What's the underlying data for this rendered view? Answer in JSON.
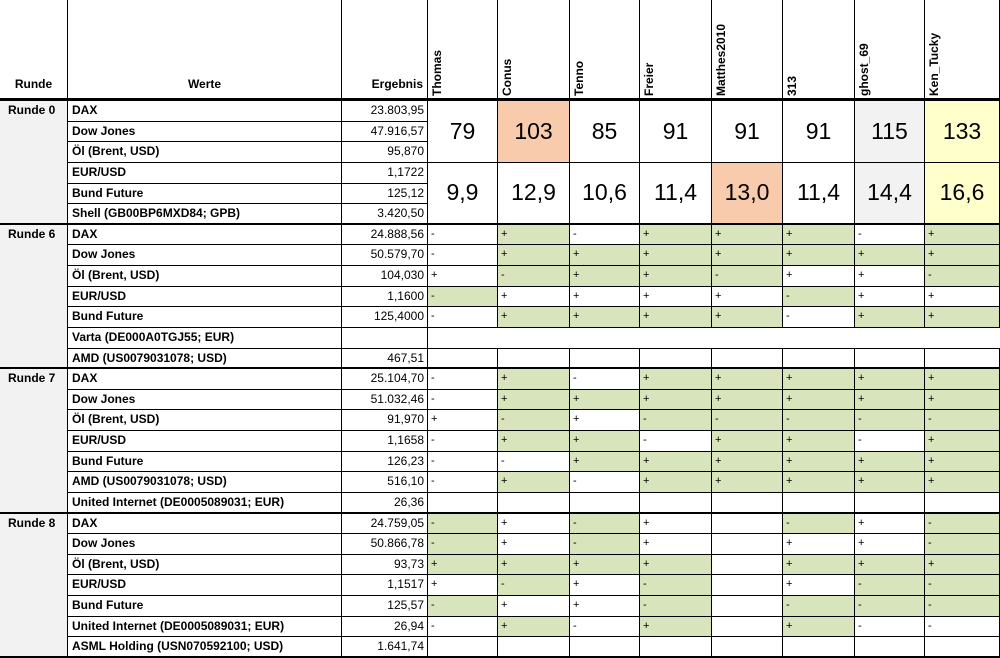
{
  "header": {
    "round": "Runde",
    "values": "Werte",
    "result": "Ergebnis",
    "players": [
      "Thomas",
      "Conus",
      "Tenno",
      "Freier",
      "Matthes2010",
      "313",
      "ghost_69",
      "Ken_Tucky"
    ]
  },
  "colors": {
    "shade": "#d8e4bc",
    "round_bg": "#f2f2f2"
  },
  "rounds": [
    {
      "label": "Runde 0",
      "rows": [
        {
          "name": "DAX",
          "result": "23.803,95"
        },
        {
          "name": "Dow Jones",
          "result": "47.916,57"
        },
        {
          "name": "Öl (Brent, USD)",
          "result": "95,870"
        },
        {
          "name": "EUR/USD",
          "result": "1,1722"
        },
        {
          "name": "Bund Future",
          "result": "125,12"
        },
        {
          "name": "Shell (GB00BP6MXD84; GPB)",
          "result": "3.420,50"
        }
      ],
      "scores": [
        {
          "values": [
            "79",
            "103",
            "85",
            "91",
            "91",
            "91",
            "115",
            "133"
          ],
          "colors": [
            null,
            "#f8cbad",
            null,
            null,
            null,
            null,
            "#f2f2f2",
            "#ffffcc"
          ]
        },
        {
          "values": [
            "9,9",
            "12,9",
            "10,6",
            "11,4",
            "13,0",
            "11,4",
            "14,4",
            "16,6"
          ],
          "colors": [
            null,
            null,
            null,
            null,
            "#f8cbad",
            null,
            "#f2f2f2",
            "#ffffcc"
          ]
        }
      ]
    },
    {
      "label": "Runde 6",
      "rows": [
        {
          "name": "DAX",
          "result": "24.888,56"
        },
        {
          "name": "Dow Jones",
          "result": "50.579,70"
        },
        {
          "name": "Öl (Brent, USD)",
          "result": "104,030"
        },
        {
          "name": "EUR/USD",
          "result": "1,1600"
        },
        {
          "name": "Bund Future",
          "result": "125,4000"
        },
        {
          "name": "Varta (DE000A0TGJ55; EUR)",
          "result": null
        },
        {
          "name": "AMD (US0079031078; USD)",
          "result": "467,51"
        }
      ],
      "picks": [
        [
          "-",
          "+",
          "-",
          "+",
          "+",
          "+",
          "-",
          "+"
        ],
        [
          "-",
          "+",
          "+",
          "+",
          "+",
          "+",
          "+",
          "+"
        ],
        [
          "+",
          "-",
          "+",
          "+",
          "-",
          "+",
          "+",
          "-"
        ],
        [
          "-",
          "+",
          "+",
          "+",
          "+",
          "-",
          "+",
          "+"
        ],
        [
          "-",
          "+",
          "+",
          "+",
          "+",
          "-",
          "+",
          "+"
        ],
        null,
        null
      ],
      "shaded": [
        [
          false,
          true,
          false,
          true,
          true,
          true,
          false,
          true
        ],
        [
          false,
          true,
          true,
          true,
          true,
          true,
          true,
          true
        ],
        [
          false,
          true,
          true,
          true,
          true,
          false,
          false,
          true
        ],
        [
          true,
          false,
          false,
          false,
          false,
          true,
          false,
          false
        ],
        [
          false,
          true,
          true,
          true,
          true,
          false,
          true,
          true
        ],
        null,
        null
      ]
    },
    {
      "label": "Runde 7",
      "rows": [
        {
          "name": "DAX",
          "result": "25.104,70"
        },
        {
          "name": "Dow Jones",
          "result": "51.032,46"
        },
        {
          "name": "Öl (Brent, USD)",
          "result": "91,970"
        },
        {
          "name": "EUR/USD",
          "result": "1,1658"
        },
        {
          "name": "Bund Future",
          "result": "126,23"
        },
        {
          "name": "AMD (US0079031078; USD)",
          "result": "516,10"
        },
        {
          "name": "United Internet (DE0005089031; EUR)",
          "result": "26,36"
        }
      ],
      "picks": [
        [
          "-",
          "+",
          "-",
          "+",
          "+",
          "+",
          "+",
          "+"
        ],
        [
          "-",
          "+",
          "+",
          "+",
          "+",
          "+",
          "+",
          "+"
        ],
        [
          "+",
          "-",
          "+",
          "-",
          "-",
          "-",
          "-",
          "-"
        ],
        [
          "-",
          "+",
          "+",
          "-",
          "+",
          "+",
          "-",
          "+"
        ],
        [
          "-",
          "-",
          "+",
          "+",
          "+",
          "+",
          "+",
          "+"
        ],
        [
          "-",
          "+",
          "-",
          "+",
          "+",
          "+",
          "+",
          "+"
        ],
        null
      ],
      "shaded": [
        [
          false,
          true,
          false,
          true,
          true,
          true,
          true,
          true
        ],
        [
          false,
          true,
          true,
          true,
          true,
          true,
          true,
          true
        ],
        [
          false,
          true,
          false,
          true,
          true,
          true,
          true,
          true
        ],
        [
          false,
          true,
          true,
          false,
          true,
          true,
          false,
          true
        ],
        [
          false,
          false,
          true,
          true,
          true,
          true,
          true,
          true
        ],
        [
          false,
          true,
          false,
          true,
          true,
          true,
          true,
          true
        ],
        null
      ]
    },
    {
      "label": "Runde 8",
      "rows": [
        {
          "name": "DAX",
          "result": "24.759,05"
        },
        {
          "name": "Dow Jones",
          "result": "50.866,78"
        },
        {
          "name": "Öl (Brent, USD)",
          "result": "93,73"
        },
        {
          "name": "EUR/USD",
          "result": "1,1517"
        },
        {
          "name": "Bund Future",
          "result": "125,57"
        },
        {
          "name": "United Internet (DE0005089031; EUR)",
          "result": "26,94"
        },
        {
          "name": "ASML Holding (USN070592100; USD)",
          "result": "1.641,74"
        }
      ],
      "picks": [
        [
          "-",
          "+",
          "-",
          "+",
          null,
          "-",
          "+",
          "-"
        ],
        [
          "-",
          "+",
          "-",
          "+",
          null,
          "+",
          "+",
          "-"
        ],
        [
          "+",
          "+",
          "+",
          "+",
          null,
          "+",
          "+",
          "+"
        ],
        [
          "+",
          "-",
          "+",
          "-",
          null,
          "+",
          "-",
          "-"
        ],
        [
          "-",
          "+",
          "+",
          "-",
          null,
          "-",
          "-",
          "-"
        ],
        [
          "-",
          "+",
          "-",
          "+",
          null,
          "+",
          "-",
          "-"
        ],
        null
      ],
      "shaded": [
        [
          true,
          false,
          true,
          false,
          false,
          true,
          false,
          true
        ],
        [
          true,
          false,
          true,
          false,
          false,
          false,
          false,
          true
        ],
        [
          true,
          true,
          true,
          true,
          false,
          true,
          true,
          true
        ],
        [
          false,
          true,
          false,
          true,
          false,
          false,
          true,
          true
        ],
        [
          true,
          false,
          false,
          true,
          false,
          true,
          true,
          true
        ],
        [
          false,
          true,
          false,
          true,
          false,
          true,
          false,
          false
        ],
        null
      ]
    }
  ]
}
